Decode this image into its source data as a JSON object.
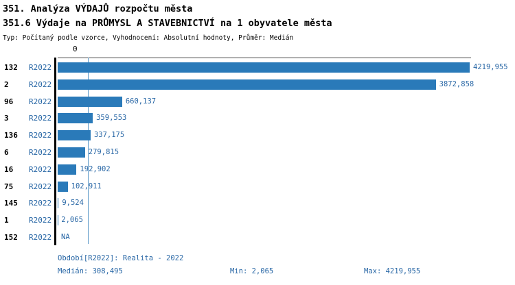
{
  "title": "351. Analýza VÝDAJŮ rozpočtu města",
  "subtitle": "351.6 Výdaje na PRŮMYSL A STAVEBNICTVÍ na 1 obyvatele města",
  "meta_line": "Typ: Počítaný podle vzorce, Vyhodnocení: Absolutní hodnoty, Průměr: Medián",
  "colors": {
    "bar": "#2a7ab9",
    "text_blue": "#2766a5",
    "median_line": "#5f9ac9",
    "axis": "#000000"
  },
  "chart_data": {
    "type": "bar",
    "orientation": "horizontal",
    "axis_zero_label": "0",
    "xmax": 4219.955,
    "median_value": 308.495,
    "legend_position": "none",
    "rows": [
      {
        "rank": "132",
        "period": "R2022",
        "value": 4219.955,
        "label": "4219,955"
      },
      {
        "rank": "2",
        "period": "R2022",
        "value": 3872.858,
        "label": "3872,858"
      },
      {
        "rank": "96",
        "period": "R2022",
        "value": 660.137,
        "label": "660,137"
      },
      {
        "rank": "3",
        "period": "R2022",
        "value": 359.553,
        "label": "359,553"
      },
      {
        "rank": "136",
        "period": "R2022",
        "value": 337.175,
        "label": "337,175"
      },
      {
        "rank": "6",
        "period": "R2022",
        "value": 279.815,
        "label": "279,815"
      },
      {
        "rank": "16",
        "period": "R2022",
        "value": 192.902,
        "label": "192,902"
      },
      {
        "rank": "75",
        "period": "R2022",
        "value": 102.911,
        "label": "102,911"
      },
      {
        "rank": "145",
        "period": "R2022",
        "value": 9.524,
        "label": "9,524"
      },
      {
        "rank": "1",
        "period": "R2022",
        "value": 2.065,
        "label": "2,065"
      },
      {
        "rank": "152",
        "period": "R2022",
        "value": null,
        "label": "NA"
      }
    ],
    "footer": {
      "period_line": "Období[R2022]: Realita - 2022",
      "median": "Medián: 308,495",
      "min": "Min: 2,065",
      "max": "Max: 4219,955"
    }
  }
}
